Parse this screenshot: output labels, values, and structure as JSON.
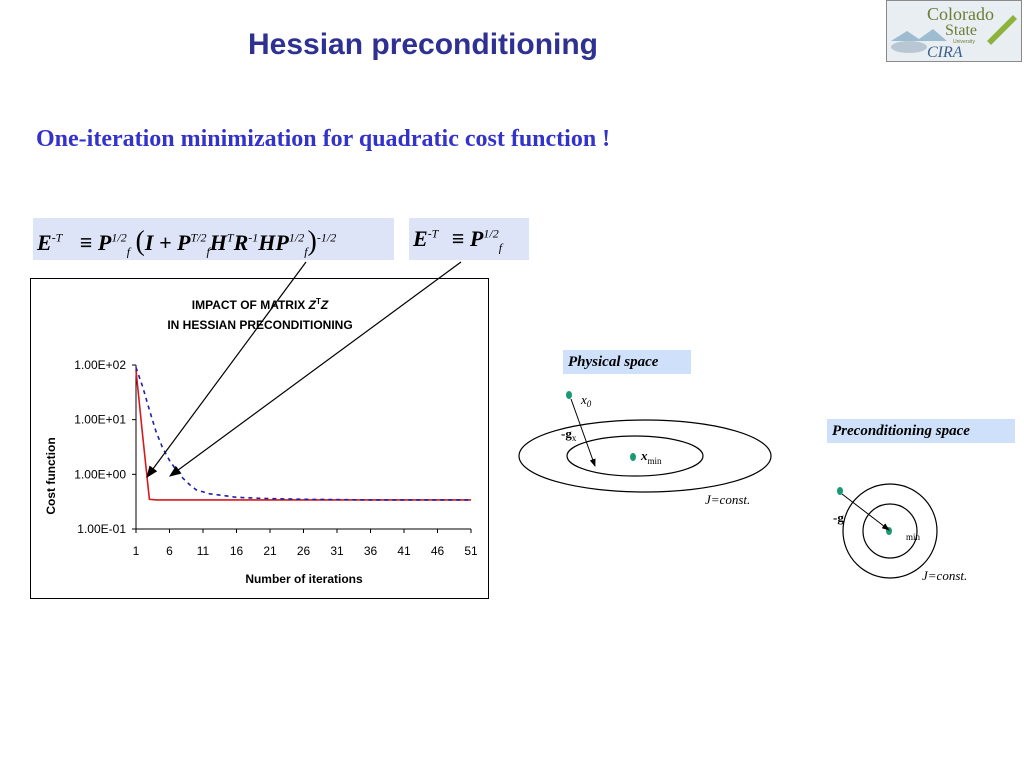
{
  "slide": {
    "title": "Hessian preconditioning",
    "subtitle": "One-iteration minimization for quadratic cost function !"
  },
  "logo": {
    "line1": "Colorado",
    "line2": "State",
    "line3": "University",
    "line4": "CIRA"
  },
  "equations": {
    "eq1": {
      "E": "E",
      "E_sup": "-T",
      "P1": "P",
      "P1_sup": "1/2",
      "P1_sub": "f",
      "bracket_open": "(",
      "I": "I",
      "plus": "+",
      "P2": "P",
      "P2_sup": "T/2",
      "P2_sub": "f",
      "H": "H",
      "H_sup": "T",
      "R": "R",
      "R_sup": "-1",
      "HP": "HP",
      "HP_sup": "1/2",
      "HP_sub": "f",
      "bracket_close": ")",
      "tail_sup": "-1/2"
    },
    "eq2": {
      "E": "E",
      "E_sup": "-T",
      "P": "P",
      "P_sup": "1/2",
      "P_sub": "f"
    }
  },
  "chart_data": {
    "type": "line",
    "title_line1": "IMPACT OF MATRIX",
    "title_z": "Z",
    "title_sup": "T",
    "title_z2": "Z",
    "title_line2": "IN HESSIAN PRECONDITIONING",
    "xlabel": "Number of iterations",
    "ylabel": "Cost function",
    "x_ticks": [
      "1",
      "6",
      "11",
      "16",
      "21",
      "26",
      "31",
      "36",
      "41",
      "46",
      "51"
    ],
    "y_ticks": [
      "1.00E+02",
      "1.00E+01",
      "1.00E+00",
      "1.00E-01"
    ],
    "y_scale": "log",
    "xlim": [
      1,
      51
    ],
    "ylim": [
      0.1,
      100
    ],
    "series": [
      {
        "style": "solid",
        "color": "#d7191c",
        "x": [
          1,
          2,
          3,
          4,
          6,
          11,
          16,
          21,
          26,
          31,
          36,
          41,
          46,
          51
        ],
        "y": [
          80,
          5,
          0.35,
          0.34,
          0.34,
          0.34,
          0.34,
          0.34,
          0.34,
          0.34,
          0.34,
          0.34,
          0.34,
          0.34
        ]
      },
      {
        "style": "dashed",
        "color": "#1f1fa8",
        "x": [
          1,
          2,
          3,
          4,
          5,
          6,
          7,
          8,
          9,
          10,
          12,
          14,
          16,
          18,
          21,
          26,
          31,
          36,
          41,
          46,
          51
        ],
        "y": [
          90,
          40,
          15,
          6,
          3,
          1.8,
          1.2,
          0.85,
          0.65,
          0.52,
          0.44,
          0.41,
          0.38,
          0.37,
          0.36,
          0.35,
          0.345,
          0.34,
          0.34,
          0.34,
          0.34
        ]
      }
    ],
    "grid": false,
    "legend": "none"
  },
  "physical_space": {
    "label": "Physical space",
    "x0": "x",
    "x0_sub": "0",
    "g": "-g",
    "g_sub": "x",
    "xmin": "x",
    "xmin_sub": "min",
    "j": "J=const."
  },
  "preconditioning_space": {
    "label": "Preconditioning space",
    "g": "-g",
    "xmin_sub": "min",
    "j": "J=const."
  },
  "colors": {
    "title": "#2e3192",
    "subtitle": "#3333cc",
    "eq_box": "#dde4f7",
    "label_box": "#cfe0fa",
    "dot": "#1a9a73"
  }
}
